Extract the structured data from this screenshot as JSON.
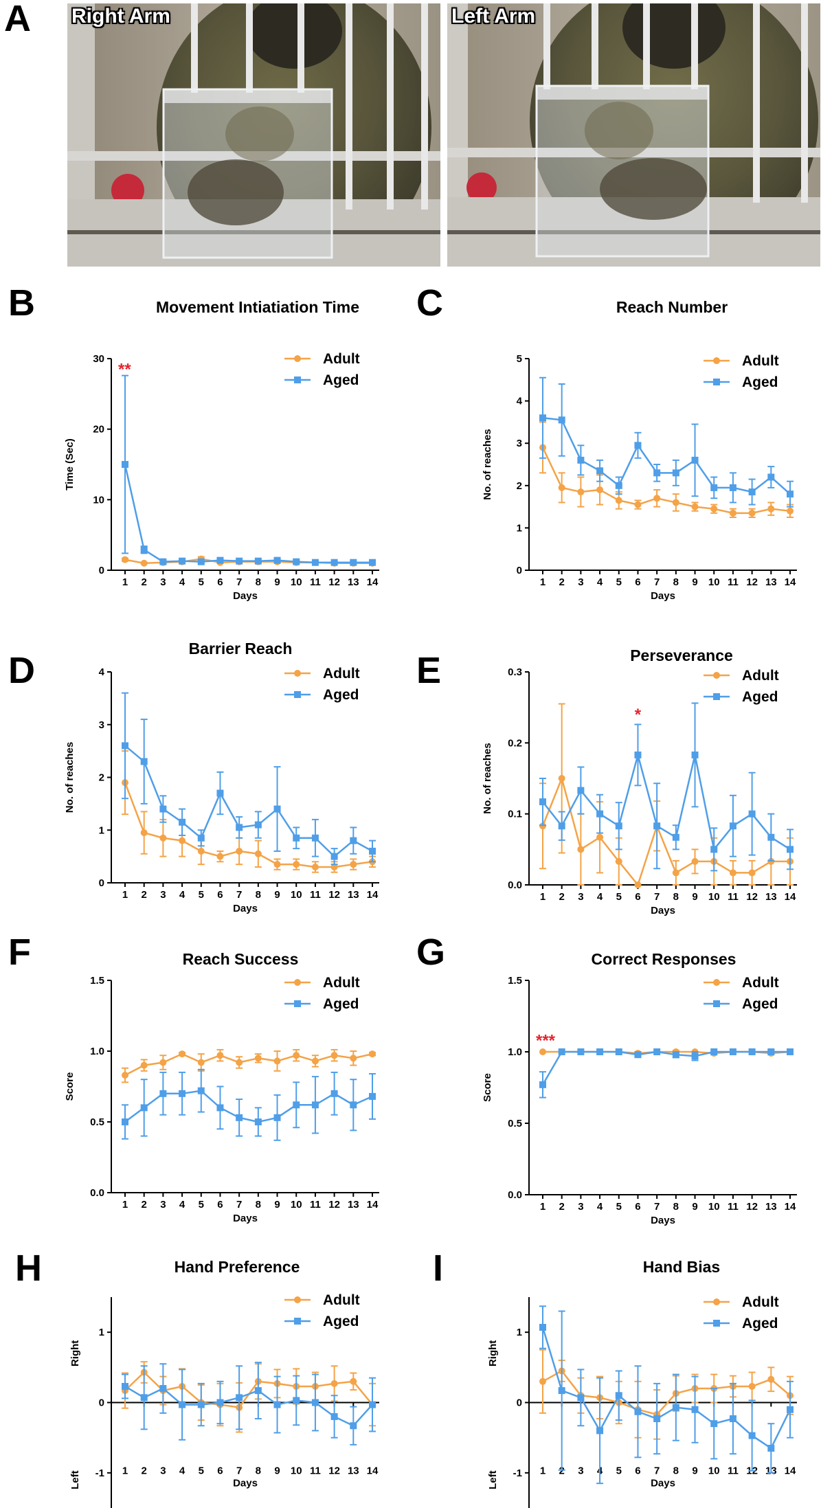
{
  "figure": {
    "panels": [
      "A",
      "B",
      "C",
      "D",
      "E",
      "F",
      "G",
      "H",
      "I"
    ],
    "photos": [
      {
        "label": "Right Arm",
        "subject": "monkey-reaching-right-arm"
      },
      {
        "label": "Left Arm",
        "subject": "monkey-reaching-left-arm"
      }
    ]
  },
  "colors": {
    "adult": "#f4a347",
    "aged": "#4f9ee8",
    "significance": "#e8242c"
  },
  "chart_data": [
    {
      "panel": "B",
      "type": "line",
      "title": "Movement Intiatiation Time",
      "xlabel": "Days",
      "ylabel": "Time (Sec)",
      "x": [
        1,
        2,
        3,
        4,
        5,
        6,
        7,
        8,
        9,
        10,
        11,
        12,
        13,
        14
      ],
      "ylim": [
        0,
        30
      ],
      "yticks": [
        0,
        10,
        20,
        30
      ],
      "ytick_labels": [
        "0",
        "10",
        "20",
        "30"
      ],
      "legend": "top-right",
      "significance": [
        {
          "day": 1,
          "label": "**",
          "y": 28.5
        }
      ],
      "series": [
        {
          "name": "Adult",
          "marker": "circle",
          "values": [
            1.5,
            1.0,
            1.1,
            1.2,
            1.6,
            1.1,
            1.2,
            1.2,
            1.2,
            1.1,
            1.1,
            1.0,
            1.0,
            1.0
          ],
          "errors": [
            0.2,
            0.1,
            0.1,
            0.1,
            0.3,
            0.1,
            0.1,
            0.1,
            0.2,
            0.1,
            0.1,
            0.1,
            0.1,
            0.1
          ]
        },
        {
          "name": "Aged",
          "marker": "square",
          "values": [
            15.0,
            2.9,
            1.2,
            1.3,
            1.2,
            1.4,
            1.3,
            1.3,
            1.4,
            1.2,
            1.1,
            1.1,
            1.1,
            1.1
          ],
          "errors": [
            12.6,
            0.5,
            0.2,
            0.2,
            0.2,
            0.2,
            0.1,
            0.1,
            0.2,
            0.2,
            0.1,
            0.1,
            0.1,
            0.2
          ]
        }
      ]
    },
    {
      "panel": "C",
      "type": "line",
      "title": "Reach Number",
      "xlabel": "Days",
      "ylabel": "No. of reaches",
      "x": [
        1,
        2,
        3,
        4,
        5,
        6,
        7,
        8,
        9,
        10,
        11,
        12,
        13,
        14
      ],
      "ylim": [
        0,
        5
      ],
      "yticks": [
        0,
        1,
        2,
        3,
        4,
        5
      ],
      "ytick_labels": [
        "0",
        "1",
        "2",
        "3",
        "4",
        "5"
      ],
      "legend": "top-right",
      "series": [
        {
          "name": "Adult",
          "marker": "circle",
          "values": [
            2.9,
            1.95,
            1.85,
            1.9,
            1.65,
            1.55,
            1.7,
            1.6,
            1.5,
            1.45,
            1.35,
            1.35,
            1.45,
            1.4
          ],
          "errors": [
            0.6,
            0.35,
            0.35,
            0.35,
            0.2,
            0.1,
            0.2,
            0.2,
            0.1,
            0.1,
            0.1,
            0.1,
            0.15,
            0.15
          ]
        },
        {
          "name": "Aged",
          "marker": "square",
          "values": [
            3.6,
            3.55,
            2.6,
            2.35,
            2.0,
            2.95,
            2.3,
            2.3,
            2.6,
            1.95,
            1.95,
            1.85,
            2.2,
            1.8
          ],
          "errors": [
            0.95,
            0.85,
            0.35,
            0.25,
            0.2,
            0.3,
            0.2,
            0.3,
            0.85,
            0.25,
            0.35,
            0.3,
            0.25,
            0.3
          ]
        }
      ]
    },
    {
      "panel": "D",
      "type": "line",
      "title": "Barrier Reach",
      "xlabel": "Days",
      "ylabel": "No. of reaches",
      "x": [
        1,
        2,
        3,
        4,
        5,
        6,
        7,
        8,
        9,
        10,
        11,
        12,
        13,
        14
      ],
      "ylim": [
        0,
        4
      ],
      "yticks": [
        0,
        1,
        2,
        3,
        4
      ],
      "ytick_labels": [
        "0",
        "1",
        "2",
        "3",
        "4"
      ],
      "legend": "top-right",
      "series": [
        {
          "name": "Adult",
          "marker": "circle",
          "values": [
            1.9,
            0.95,
            0.85,
            0.8,
            0.6,
            0.5,
            0.6,
            0.55,
            0.35,
            0.35,
            0.3,
            0.3,
            0.35,
            0.4
          ],
          "errors": [
            0.6,
            0.4,
            0.35,
            0.3,
            0.25,
            0.1,
            0.25,
            0.25,
            0.1,
            0.1,
            0.1,
            0.1,
            0.1,
            0.1
          ]
        },
        {
          "name": "Aged",
          "marker": "square",
          "values": [
            2.6,
            2.3,
            1.4,
            1.15,
            0.85,
            1.7,
            1.05,
            1.1,
            1.4,
            0.85,
            0.85,
            0.5,
            0.8,
            0.6
          ],
          "errors": [
            1.0,
            0.8,
            0.25,
            0.25,
            0.15,
            0.4,
            0.2,
            0.25,
            0.8,
            0.2,
            0.35,
            0.15,
            0.25,
            0.2
          ]
        }
      ]
    },
    {
      "panel": "E",
      "type": "line",
      "title": "Perseverance",
      "xlabel": "Days",
      "ylabel": "No. of reaches",
      "x": [
        1,
        2,
        3,
        4,
        5,
        6,
        7,
        8,
        9,
        10,
        11,
        12,
        13,
        14
      ],
      "ylim": [
        0,
        0.3
      ],
      "yticks": [
        0,
        0.1,
        0.2,
        0.3
      ],
      "ytick_labels": [
        "0.0",
        "0.1",
        "0.2",
        "0.3"
      ],
      "legend": "top-right",
      "significance": [
        {
          "day": 6,
          "label": "*",
          "y": 0.24
        }
      ],
      "series": [
        {
          "name": "Adult",
          "marker": "circle",
          "values": [
            0.083,
            0.15,
            0.05,
            0.067,
            0.033,
            0.0,
            0.083,
            0.017,
            0.033,
            0.033,
            0.017,
            0.017,
            0.033,
            0.033
          ],
          "errors": [
            0.06,
            0.105,
            0.05,
            0.05,
            0.033,
            0.0,
            0.035,
            0.017,
            0.017,
            0.033,
            0.017,
            0.017,
            0.033,
            0.033
          ]
        },
        {
          "name": "Aged",
          "marker": "square",
          "values": [
            0.117,
            0.083,
            0.133,
            0.1,
            0.083,
            0.183,
            0.083,
            0.067,
            0.183,
            0.05,
            0.083,
            0.1,
            0.067,
            0.05
          ],
          "errors": [
            0.033,
            0.02,
            0.033,
            0.027,
            0.033,
            0.043,
            0.06,
            0.017,
            0.073,
            0.03,
            0.043,
            0.058,
            0.033,
            0.028
          ]
        }
      ]
    },
    {
      "panel": "F",
      "type": "line",
      "title": "Reach Success",
      "xlabel": "Days",
      "ylabel": "Score",
      "x": [
        1,
        2,
        3,
        4,
        5,
        6,
        7,
        8,
        9,
        10,
        11,
        12,
        13,
        14
      ],
      "ylim": [
        0,
        1.5
      ],
      "yticks": [
        0,
        0.5,
        1.0,
        1.5
      ],
      "ytick_labels": [
        "0.0",
        "0.5",
        "1.0",
        "1.5"
      ],
      "legend": "top-right",
      "series": [
        {
          "name": "Adult",
          "marker": "circle",
          "values": [
            0.83,
            0.9,
            0.92,
            0.98,
            0.92,
            0.97,
            0.92,
            0.95,
            0.93,
            0.97,
            0.93,
            0.97,
            0.95,
            0.98
          ],
          "errors": [
            0.05,
            0.04,
            0.05,
            0.01,
            0.06,
            0.04,
            0.04,
            0.03,
            0.07,
            0.04,
            0.04,
            0.04,
            0.05,
            0.01
          ]
        },
        {
          "name": "Aged",
          "marker": "square",
          "values": [
            0.5,
            0.6,
            0.7,
            0.7,
            0.72,
            0.6,
            0.53,
            0.5,
            0.53,
            0.62,
            0.62,
            0.7,
            0.62,
            0.68
          ],
          "errors": [
            0.12,
            0.2,
            0.15,
            0.15,
            0.15,
            0.15,
            0.13,
            0.1,
            0.16,
            0.16,
            0.2,
            0.15,
            0.18,
            0.16
          ]
        }
      ]
    },
    {
      "panel": "G",
      "type": "line",
      "title": "Correct Responses",
      "xlabel": "Days",
      "ylabel": "Score",
      "x": [
        1,
        2,
        3,
        4,
        5,
        6,
        7,
        8,
        9,
        10,
        11,
        12,
        13,
        14
      ],
      "ylim": [
        0,
        1.5
      ],
      "yticks": [
        0,
        0.5,
        1.0,
        1.5
      ],
      "ytick_labels": [
        "0.0",
        "0.5",
        "1.0",
        "1.5"
      ],
      "legend": "top-right",
      "significance": [
        {
          "day": 1,
          "label": "***",
          "y": 1.08
        }
      ],
      "series": [
        {
          "name": "Adult",
          "marker": "circle",
          "values": [
            1.0,
            1.0,
            1.0,
            1.0,
            1.0,
            0.99,
            1.0,
            1.0,
            1.0,
            0.99,
            1.0,
            1.0,
            0.99,
            1.0
          ],
          "errors": [
            0,
            0,
            0,
            0,
            0,
            0.01,
            0,
            0.01,
            0,
            0.01,
            0,
            0,
            0.01,
            0
          ]
        },
        {
          "name": "Aged",
          "marker": "square",
          "values": [
            0.77,
            1.0,
            1.0,
            1.0,
            1.0,
            0.98,
            1.0,
            0.98,
            0.97,
            1.0,
            1.0,
            1.0,
            1.0,
            1.0
          ],
          "errors": [
            0.09,
            0,
            0,
            0,
            0,
            0.01,
            0,
            0.02,
            0.03,
            0,
            0,
            0,
            0.01,
            0
          ]
        }
      ]
    },
    {
      "panel": "H",
      "type": "line",
      "title": "Hand Preference",
      "xlabel": "Days",
      "ylabel": "",
      "ylabels_sided": {
        "top": "Right",
        "bottom": "Left"
      },
      "x": [
        1,
        2,
        3,
        4,
        5,
        6,
        7,
        8,
        9,
        10,
        11,
        12,
        13,
        14
      ],
      "ylim": [
        -1.5,
        1.5
      ],
      "yticks": [
        -1,
        0,
        1
      ],
      "ytick_labels": [
        "-1",
        "0",
        "1"
      ],
      "legend": "top-right",
      "series": [
        {
          "name": "Adult",
          "marker": "circle",
          "values": [
            0.17,
            0.43,
            0.17,
            0.23,
            0.0,
            -0.03,
            -0.07,
            0.3,
            0.27,
            0.23,
            0.23,
            0.27,
            0.3,
            -0.03
          ],
          "errors": [
            0.25,
            0.15,
            0.2,
            0.25,
            0.25,
            0.3,
            0.35,
            0.25,
            0.2,
            0.25,
            0.2,
            0.25,
            0.12,
            0.3
          ]
        },
        {
          "name": "Aged",
          "marker": "square",
          "values": [
            0.23,
            0.07,
            0.2,
            -0.03,
            -0.03,
            0.0,
            0.07,
            0.17,
            -0.03,
            0.03,
            0.0,
            -0.2,
            -0.33,
            -0.03
          ],
          "errors": [
            0.17,
            0.45,
            0.35,
            0.5,
            0.3,
            0.3,
            0.45,
            0.4,
            0.4,
            0.35,
            0.4,
            0.3,
            0.27,
            0.38
          ]
        }
      ]
    },
    {
      "panel": "I",
      "type": "line",
      "title": "Hand Bias",
      "xlabel": "Days",
      "ylabel": "",
      "ylabels_sided": {
        "top": "Right",
        "bottom": "Left"
      },
      "x": [
        1,
        2,
        3,
        4,
        5,
        6,
        7,
        8,
        9,
        10,
        11,
        12,
        13,
        14
      ],
      "ylim": [
        -1.5,
        1.5
      ],
      "yticks": [
        -1,
        0,
        1
      ],
      "ytick_labels": [
        "-1",
        "0",
        "1"
      ],
      "legend": "top-right",
      "series": [
        {
          "name": "Adult",
          "marker": "circle",
          "values": [
            0.3,
            0.45,
            0.1,
            0.07,
            0.0,
            -0.1,
            -0.17,
            0.13,
            0.2,
            0.2,
            0.23,
            0.23,
            0.33,
            0.1
          ],
          "errors": [
            0.45,
            0.15,
            0.25,
            0.3,
            0.3,
            0.4,
            0.35,
            0.25,
            0.2,
            0.2,
            0.15,
            0.2,
            0.17,
            0.27
          ]
        },
        {
          "name": "Aged",
          "marker": "square",
          "values": [
            1.07,
            0.17,
            0.07,
            -0.4,
            0.1,
            -0.13,
            -0.23,
            -0.07,
            -0.1,
            -0.3,
            -0.23,
            -0.47,
            -0.65,
            -0.1
          ],
          "errors": [
            0.3,
            1.13,
            0.4,
            0.75,
            0.35,
            0.65,
            0.5,
            0.47,
            0.47,
            0.5,
            0.5,
            0.5,
            0.35,
            0.4
          ]
        }
      ]
    }
  ]
}
